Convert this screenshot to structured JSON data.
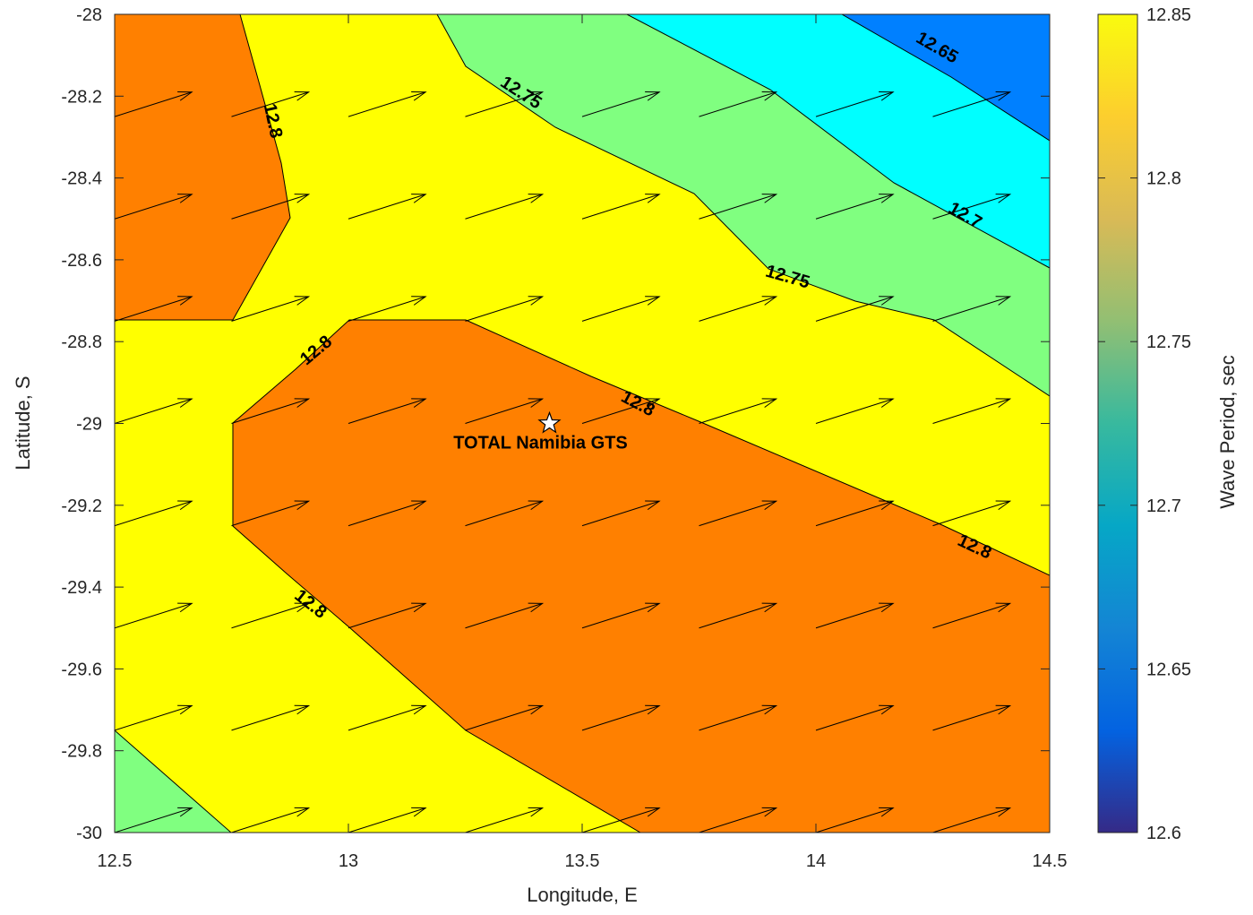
{
  "chart_data": {
    "type": "contour",
    "title": "",
    "xlabel": "Longitude, E",
    "ylabel": "Latitude, S",
    "colorbar_label": "Wave Period, sec",
    "xlim": [
      12.5,
      14.5
    ],
    "ylim": [
      -30,
      -28
    ],
    "xticks": [
      "12.5",
      "13",
      "13.5",
      "14",
      "14.5"
    ],
    "yticks": [
      "-28",
      "-28.2",
      "-28.4",
      "-28.6",
      "-28.8",
      "-29",
      "-29.2",
      "-29.4",
      "-29.6",
      "-29.8",
      "-30"
    ],
    "colorbar_range": [
      12.6,
      12.85
    ],
    "colorbar_ticks": [
      "12.85",
      "12.8",
      "12.75",
      "12.7",
      "12.65",
      "12.6"
    ],
    "colormap": [
      "#352a87",
      "#0363e1",
      "#1485d4",
      "#06a7c6",
      "#38b99e",
      "#92bf73",
      "#d9ba56",
      "#fcce2e",
      "#f9fb0e"
    ],
    "level_colors": {
      "12.65-": "#0080ff",
      "12.65-12.7": "#00ffff",
      "12.7-12.75": "#80ff80",
      "12.75-12.8": "#ffff00",
      "12.8+": "#ff8000"
    },
    "contour_labels": [
      {
        "text": "12.65",
        "lon": 14.26,
        "lat": -28.08,
        "angle": 30
      },
      {
        "text": "12.75",
        "lon": 13.37,
        "lat": -28.19,
        "angle": 33
      },
      {
        "text": "12.8",
        "lon": 12.84,
        "lat": -28.26,
        "angle": 78
      },
      {
        "text": "12.7",
        "lon": 14.32,
        "lat": -28.49,
        "angle": 30
      },
      {
        "text": "12.75",
        "lon": 13.94,
        "lat": -28.64,
        "angle": 16
      },
      {
        "text": "12.8",
        "lon": 12.93,
        "lat": -28.82,
        "angle": -40
      },
      {
        "text": "12.8",
        "lon": 13.62,
        "lat": -28.95,
        "angle": 28
      },
      {
        "text": "12.8",
        "lon": 14.34,
        "lat": -29.3,
        "angle": 25
      },
      {
        "text": "12.8",
        "lon": 12.92,
        "lat": -29.44,
        "angle": 38
      }
    ],
    "wave_direction_arrows": {
      "lon": [
        12.5,
        12.75,
        13.0,
        13.25,
        13.5,
        13.75,
        14.0,
        14.25
      ],
      "lat": [
        -28.25,
        -28.5,
        -28.75,
        -29.0,
        -29.25,
        -29.5,
        -29.75,
        -30.0
      ],
      "lat_offset": -0.0,
      "dx_deg": 0.165,
      "dy_deg": 0.06
    },
    "site": {
      "name": "TOTAL Namibia GTS",
      "lon": 13.43,
      "lat": -29.0,
      "marker": "star"
    }
  }
}
